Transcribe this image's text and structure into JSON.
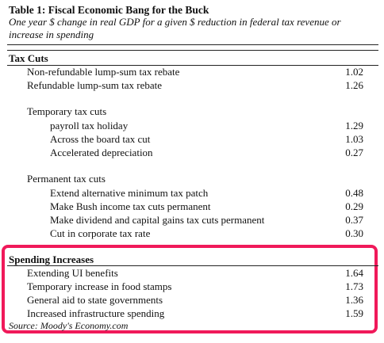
{
  "table": {
    "title": "Table 1: Fiscal Economic Bang for the Buck",
    "subtitle": "One year $ change in real GDP for a given $ reduction in federal tax revenue or increase in spending"
  },
  "tax_cuts": {
    "heading": "Tax Cuts",
    "items": [
      {
        "label": "Non-refundable lump-sum tax rebate",
        "value": "1.02"
      },
      {
        "label": "Refundable lump-sum tax rebate",
        "value": "1.26"
      }
    ],
    "temporary": {
      "heading": "Temporary tax cuts",
      "items": [
        {
          "label": "payroll tax holiday",
          "value": "1.29"
        },
        {
          "label": "Across the board tax cut",
          "value": "1.03"
        },
        {
          "label": "Accelerated depreciation",
          "value": "0.27"
        }
      ]
    },
    "permanent": {
      "heading": "Permanent tax cuts",
      "items": [
        {
          "label": "Extend alternative minimum tax patch",
          "value": "0.48"
        },
        {
          "label": "Make Bush income tax cuts permanent",
          "value": "0.29"
        },
        {
          "label": "Make dividend and capital gains tax cuts permanent",
          "value": "0.37"
        },
        {
          "label": "Cut in corporate tax rate",
          "value": "0.30"
        }
      ]
    }
  },
  "spending": {
    "heading": "Spending Increases",
    "items": [
      {
        "label": "Extending UI benefits",
        "value": "1.64"
      },
      {
        "label": "Temporary increase in food stamps",
        "value": "1.73"
      },
      {
        "label": "General aid to state governments",
        "value": "1.36"
      },
      {
        "label": "Increased infrastructure spending",
        "value": "1.59"
      }
    ]
  },
  "source": "Source: Moody's Economy.com",
  "colors": {
    "highlight": "#f0195a",
    "text": "#111111"
  }
}
